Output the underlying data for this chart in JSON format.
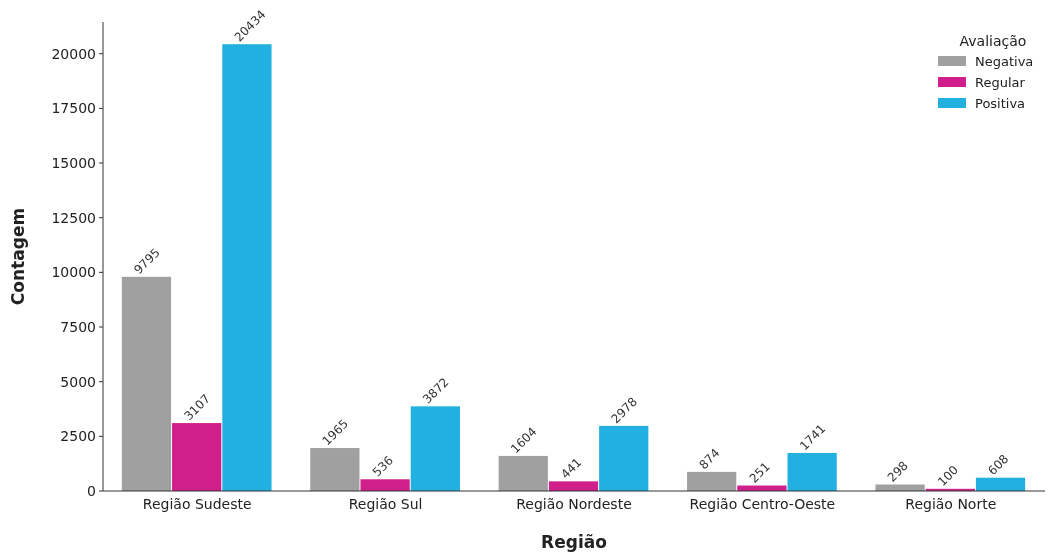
{
  "chart_data": {
    "type": "bar",
    "xlabel": "Região",
    "ylabel": "Contagem",
    "legend_title": "Avaliação",
    "categories": [
      "Região Sudeste",
      "Região Sul",
      "Região Nordeste",
      "Região Centro-Oeste",
      "Região Norte"
    ],
    "series": [
      {
        "name": "Negativa",
        "color": "#a0a0a0",
        "values": [
          9795,
          1965,
          1604,
          874,
          298
        ]
      },
      {
        "name": "Regular",
        "color": "#d01f8a",
        "values": [
          3107,
          536,
          441,
          251,
          100
        ]
      },
      {
        "name": "Positiva",
        "color": "#22b0e0",
        "values": [
          20434,
          3872,
          2978,
          1741,
          608
        ]
      }
    ],
    "ylim": [
      0,
      21450
    ],
    "yticks": [
      0,
      2500,
      5000,
      7500,
      10000,
      12500,
      15000,
      17500,
      20000
    ],
    "data_labels": true,
    "legend": "top right",
    "grid": false
  }
}
